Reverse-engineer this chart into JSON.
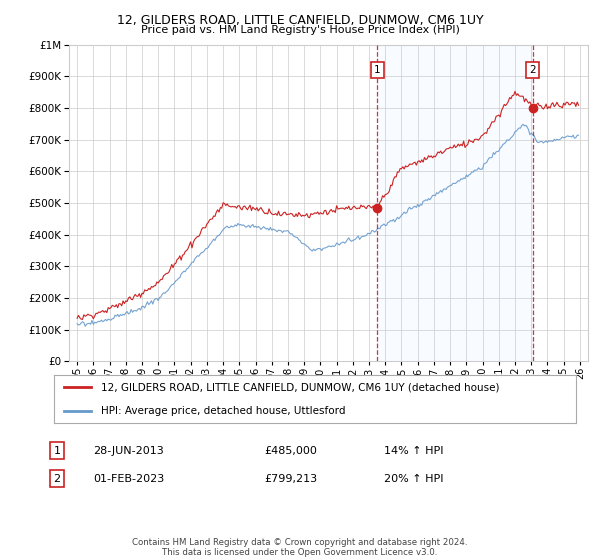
{
  "title1": "12, GILDERS ROAD, LITTLE CANFIELD, DUNMOW, CM6 1UY",
  "title2": "Price paid vs. HM Land Registry's House Price Index (HPI)",
  "legend_line1": "12, GILDERS ROAD, LITTLE CANFIELD, DUNMOW, CM6 1UY (detached house)",
  "legend_line2": "HPI: Average price, detached house, Uttlesford",
  "annotation1_label": "1",
  "annotation1_date": "28-JUN-2013",
  "annotation1_price": "£485,000",
  "annotation1_hpi": "14% ↑ HPI",
  "annotation2_label": "2",
  "annotation2_date": "01-FEB-2023",
  "annotation2_price": "£799,213",
  "annotation2_hpi": "20% ↑ HPI",
  "footer": "Contains HM Land Registry data © Crown copyright and database right 2024.\nThis data is licensed under the Open Government Licence v3.0.",
  "sale1_year": 2013.5,
  "sale1_value": 485000,
  "sale2_year": 2023.08,
  "sale2_value": 799213,
  "ylim": [
    0,
    1000000
  ],
  "xlim_start": 1994.5,
  "xlim_end": 2026.5,
  "background_color": "#ffffff",
  "plot_bg_color": "#ffffff",
  "shade_color": "#ddeeff",
  "grid_color": "#cccccc",
  "line1_color": "#cc2222",
  "line2_color": "#6699cc",
  "vline_color": "#cc2222",
  "title_fontsize": 9,
  "subtitle_fontsize": 8
}
